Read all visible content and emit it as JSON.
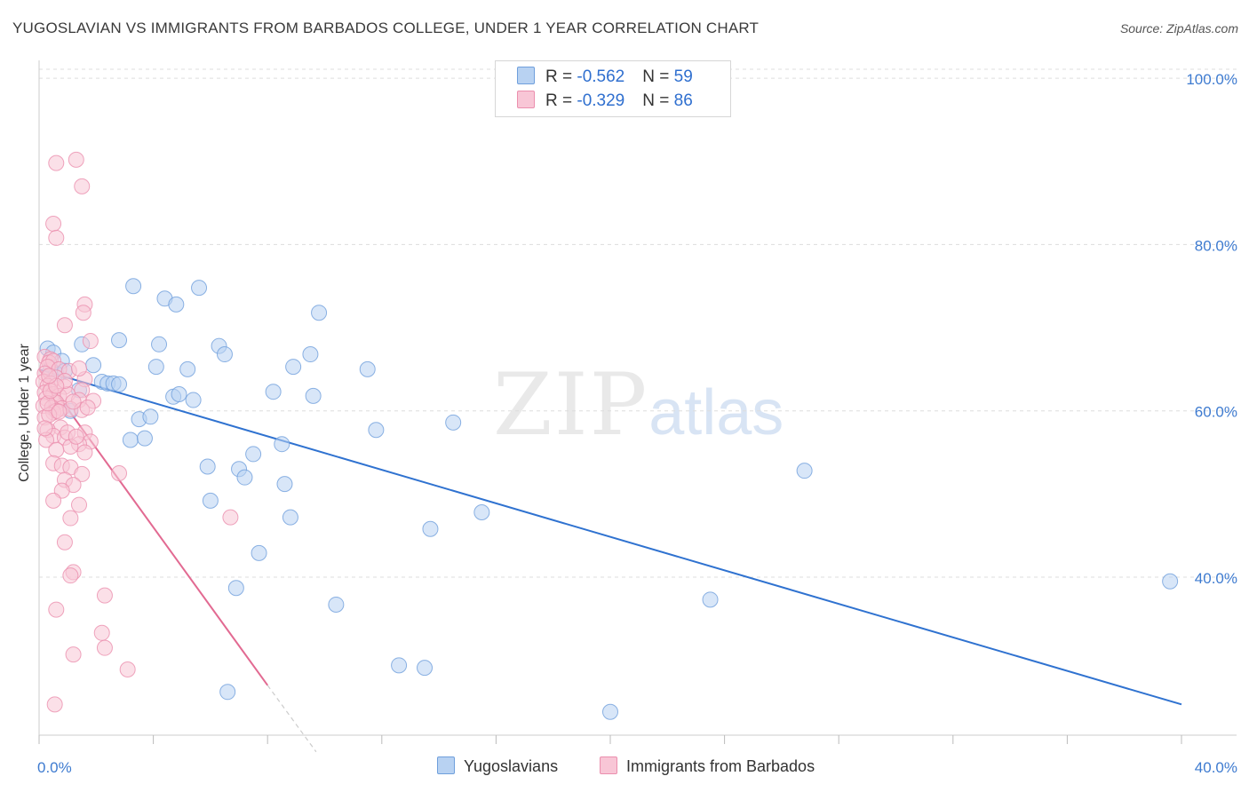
{
  "header": {
    "title": "YUGOSLAVIAN VS IMMIGRANTS FROM BARBADOS COLLEGE, UNDER 1 YEAR CORRELATION CHART",
    "source": "Source: ZipAtlas.com"
  },
  "watermark": {
    "zip": "ZIP",
    "atlas": "atlas"
  },
  "legend_top": {
    "rows": [
      {
        "r_label": "R = ",
        "r_value": "-0.562",
        "n_label": "N = ",
        "n_value": "59"
      },
      {
        "r_label": "R = ",
        "r_value": "-0.329",
        "n_label": "N = ",
        "n_value": "86"
      }
    ]
  },
  "legend_bottom": {
    "series1": "Yugoslavians",
    "series2": "Immigrants from Barbados"
  },
  "colors": {
    "blue_fill": "#b8d2f2",
    "blue_stroke": "#6f9fdc",
    "blue_line": "#2f72d0",
    "pink_fill": "#f8c6d6",
    "pink_stroke": "#eb8fae",
    "pink_line": "#e26a92",
    "grid": "#dddddd",
    "tick_text": "#3e7bd0"
  },
  "chart_data": {
    "type": "scatter",
    "title": "YUGOSLAVIAN VS IMMIGRANTS FROM BARBADOS COLLEGE, UNDER 1 YEAR CORRELATION CHART",
    "xlabel": "",
    "ylabel": "College, Under 1 year",
    "xlim": [
      0,
      40
    ],
    "ylim": [
      21,
      103
    ],
    "x_tick_labels": [
      "0.0%",
      "40.0%"
    ],
    "y_ticks": [
      40,
      60,
      80,
      100
    ],
    "y_tick_labels": [
      "40.0%",
      "60.0%",
      "80.0%",
      "100.0%"
    ],
    "grid": true,
    "legend": "top-center",
    "series": [
      {
        "name": "Yugoslavians",
        "r": -0.562,
        "n": 59,
        "trend": {
          "x": [
            0,
            40
          ],
          "y": [
            65.0,
            24.7
          ]
        },
        "points": [
          [
            0.3,
            67.5
          ],
          [
            0.5,
            67
          ],
          [
            0.8,
            66
          ],
          [
            0.4,
            65
          ],
          [
            0.6,
            64.5
          ],
          [
            1.4,
            62.5
          ],
          [
            1.1,
            60
          ],
          [
            1.5,
            68
          ],
          [
            1.9,
            65.5
          ],
          [
            2.2,
            63.5
          ],
          [
            2.4,
            63.3
          ],
          [
            2.6,
            63.3
          ],
          [
            2.8,
            63.2
          ],
          [
            2.8,
            68.5
          ],
          [
            3.2,
            56.5
          ],
          [
            3.3,
            75
          ],
          [
            3.5,
            59
          ],
          [
            3.7,
            56.7
          ],
          [
            3.9,
            59.3
          ],
          [
            4.1,
            65.3
          ],
          [
            4.2,
            68
          ],
          [
            4.4,
            73.5
          ],
          [
            4.7,
            61.7
          ],
          [
            4.8,
            72.8
          ],
          [
            4.9,
            62
          ],
          [
            5.2,
            65
          ],
          [
            5.4,
            61.3
          ],
          [
            5.6,
            74.8
          ],
          [
            5.9,
            53.3
          ],
          [
            6.0,
            49.2
          ],
          [
            6.3,
            67.8
          ],
          [
            6.5,
            66.8
          ],
          [
            6.9,
            38.7
          ],
          [
            7.0,
            53
          ],
          [
            7.2,
            52
          ],
          [
            7.5,
            54.8
          ],
          [
            7.7,
            42.9
          ],
          [
            8.2,
            62.3
          ],
          [
            8.5,
            56
          ],
          [
            8.6,
            51.2
          ],
          [
            8.8,
            47.2
          ],
          [
            8.9,
            65.3
          ],
          [
            9.5,
            66.8
          ],
          [
            9.6,
            61.8
          ],
          [
            9.8,
            71.8
          ],
          [
            10.4,
            36.7
          ],
          [
            11.5,
            65
          ],
          [
            11.8,
            57.7
          ],
          [
            12.6,
            29.4
          ],
          [
            13.5,
            29.1
          ],
          [
            13.7,
            45.8
          ],
          [
            14.5,
            58.6
          ],
          [
            15.5,
            47.8
          ],
          [
            20.0,
            23.8
          ],
          [
            23.5,
            37.3
          ],
          [
            26.8,
            52.8
          ],
          [
            39.6,
            39.5
          ],
          [
            6.6,
            26.2
          ],
          [
            0.9,
            64.8
          ]
        ]
      },
      {
        "name": "Immigrants from Barbados",
        "r": -0.329,
        "n": 86,
        "trend": {
          "x": [
            0,
            8.0
          ],
          "y": [
            65.0,
            27.0
          ]
        },
        "trend_dashed": {
          "x": [
            8.0,
            9.7
          ],
          "y": [
            27.0,
            19.0
          ]
        },
        "points": [
          [
            0.6,
            89.8
          ],
          [
            1.3,
            90.2
          ],
          [
            1.5,
            87
          ],
          [
            0.5,
            82.5
          ],
          [
            0.6,
            80.8
          ],
          [
            1.6,
            72.8
          ],
          [
            1.55,
            71.8
          ],
          [
            0.9,
            70.3
          ],
          [
            1.8,
            68.4
          ],
          [
            0.2,
            66.5
          ],
          [
            0.4,
            66.2
          ],
          [
            0.35,
            65.8
          ],
          [
            0.5,
            66
          ],
          [
            0.3,
            65.3
          ],
          [
            0.7,
            65
          ],
          [
            1.05,
            64.8
          ],
          [
            0.2,
            64.5
          ],
          [
            0.6,
            64
          ],
          [
            1.6,
            63.8
          ],
          [
            0.15,
            63.5
          ],
          [
            0.4,
            63.3
          ],
          [
            0.3,
            63
          ],
          [
            0.9,
            62.9
          ],
          [
            1.5,
            62.5
          ],
          [
            0.2,
            62.2
          ],
          [
            0.5,
            62
          ],
          [
            0.7,
            61.8
          ],
          [
            1.0,
            62
          ],
          [
            0.25,
            61.5
          ],
          [
            1.4,
            61.3
          ],
          [
            0.6,
            61
          ],
          [
            1.9,
            61.2
          ],
          [
            0.15,
            60.6
          ],
          [
            0.45,
            60.4
          ],
          [
            0.8,
            60.3
          ],
          [
            0.5,
            59.8
          ],
          [
            0.6,
            60
          ],
          [
            1.1,
            60.2
          ],
          [
            1.5,
            60.1
          ],
          [
            0.2,
            59.2
          ],
          [
            0.35,
            59.5
          ],
          [
            0.75,
            58
          ],
          [
            0.3,
            57.7
          ],
          [
            1.6,
            57.4
          ],
          [
            0.5,
            57
          ],
          [
            0.9,
            56.8
          ],
          [
            0.25,
            56.5
          ],
          [
            1.8,
            56.3
          ],
          [
            1.4,
            56
          ],
          [
            1.1,
            55.7
          ],
          [
            0.6,
            55.3
          ],
          [
            1.6,
            55
          ],
          [
            0.5,
            53.7
          ],
          [
            0.8,
            53.4
          ],
          [
            1.1,
            53.2
          ],
          [
            1.5,
            52.4
          ],
          [
            0.9,
            51.7
          ],
          [
            2.8,
            52.5
          ],
          [
            1.2,
            51.1
          ],
          [
            0.8,
            50.4
          ],
          [
            0.5,
            49.2
          ],
          [
            1.4,
            48.7
          ],
          [
            1.1,
            47.1
          ],
          [
            6.7,
            47.2
          ],
          [
            0.9,
            44.2
          ],
          [
            1.2,
            40.6
          ],
          [
            1.1,
            40.2
          ],
          [
            2.3,
            37.8
          ],
          [
            0.6,
            36.1
          ],
          [
            2.2,
            33.3
          ],
          [
            2.3,
            31.5
          ],
          [
            1.2,
            30.7
          ],
          [
            3.1,
            28.9
          ],
          [
            0.55,
            24.7
          ],
          [
            0.3,
            60.9
          ],
          [
            0.7,
            59.9
          ],
          [
            1.0,
            57.4
          ],
          [
            1.3,
            56.9
          ],
          [
            0.4,
            62.4
          ],
          [
            0.9,
            63.6
          ],
          [
            1.2,
            61.1
          ],
          [
            0.2,
            57.9
          ],
          [
            0.6,
            63.0
          ],
          [
            1.7,
            60.4
          ],
          [
            0.35,
            64.2
          ],
          [
            1.4,
            65.1
          ]
        ]
      }
    ]
  }
}
